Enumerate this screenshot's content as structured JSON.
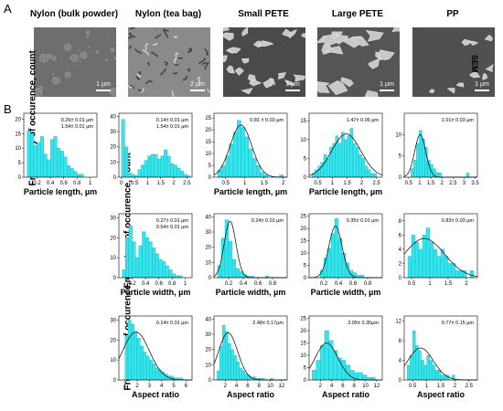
{
  "panel_labels": {
    "a": "A",
    "b": "B"
  },
  "sem": {
    "tag": "SEM",
    "columns": [
      {
        "title": "Nylon (bulk powder)",
        "scale": "1 µm",
        "bg": "#6e6e6e",
        "style": "nylon-bulk"
      },
      {
        "title": "Nylon (tea bag)",
        "scale": "2 µm",
        "bg": "#8a8a8a",
        "style": "nylon-tea"
      },
      {
        "title": "Small PETE",
        "scale": "1 µm",
        "bg": "#4a4a4a",
        "style": "flakes"
      },
      {
        "title": "Large PETE",
        "scale": "1 µm",
        "bg": "#555555",
        "style": "flakes-large"
      },
      {
        "title": "PP",
        "scale": "1 µm",
        "bg": "#505050",
        "style": "sparse"
      }
    ]
  },
  "row_labels": [
    "Frequency of occurence, count",
    "Frequency of occurence, count",
    "Frequency of occurence, count"
  ],
  "colors": {
    "bar": "#33e6ee",
    "bar_edge": "#1a9aa0",
    "fit": "#000000"
  },
  "chart_data": [
    {
      "type": "bar",
      "row": 0,
      "col": 0,
      "xlabel": "Particle length, µm",
      "annotation": [
        "0.26± 0.01 µm",
        "1.54± 0.01 µm"
      ],
      "xlim": [
        0,
        1.1
      ],
      "ylim": [
        0,
        22
      ],
      "xticks": [
        0.2,
        0.4,
        0.6,
        0.8,
        1.0
      ],
      "yticks": [
        0,
        5,
        10,
        15,
        20
      ],
      "bin_start": 0.05,
      "bin_width": 0.05,
      "values": [
        16,
        15,
        11,
        12,
        14,
        8,
        6,
        13,
        14,
        10,
        9,
        7,
        4,
        3,
        2,
        1,
        1
      ],
      "fit": null
    },
    {
      "type": "bar",
      "row": 0,
      "col": 1,
      "xlabel": "",
      "annotation": [
        "0.14± 0.01 µm",
        "1.54± 0.01 µm"
      ],
      "xlim": [
        -0.1,
        2.7
      ],
      "ylim": [
        0,
        42
      ],
      "xticks": [
        0.0,
        0.5,
        1.0,
        1.5,
        2.0,
        2.5
      ],
      "yticks": [
        0,
        10,
        20,
        30,
        40
      ],
      "bin_start": 0.0,
      "bin_width": 0.125,
      "values": [
        38,
        20,
        3,
        2,
        1,
        5,
        8,
        11,
        14,
        15,
        15,
        12,
        14,
        18,
        14,
        9,
        8,
        6,
        4,
        2,
        1
      ],
      "fit": null
    },
    {
      "type": "bar",
      "row": 0,
      "col": 2,
      "xlabel": "Particle length, µm",
      "annotation": [
        "0.81 ± 0.03 µm"
      ],
      "xlim": [
        0.2,
        2.1
      ],
      "ylim": [
        0,
        27
      ],
      "xticks": [
        0.5,
        1.0,
        1.5,
        2.0
      ],
      "yticks": [
        0,
        5,
        10,
        15,
        20,
        25
      ],
      "bin_start": 0.3,
      "bin_width": 0.1,
      "values": [
        3,
        5,
        9,
        14,
        19,
        24,
        21,
        17,
        12,
        8,
        5,
        2,
        1,
        0,
        0,
        0,
        1
      ],
      "fit": {
        "mu": 0.9,
        "sigma": 0.28,
        "amp": 22
      }
    },
    {
      "type": "bar",
      "row": 0,
      "col": 3,
      "xlabel": "Particle length, µm",
      "annotation": [
        "1.47± 0.06 µm"
      ],
      "xlim": [
        0.2,
        2.7
      ],
      "ylim": [
        0,
        17
      ],
      "xticks": [
        0.5,
        1.0,
        1.5,
        2.0,
        2.5
      ],
      "yticks": [
        0,
        5,
        10,
        15
      ],
      "bin_start": 0.3,
      "bin_width": 0.1,
      "values": [
        1,
        2,
        3,
        4,
        6,
        5,
        8,
        9,
        11,
        9,
        12,
        10,
        11,
        13,
        9,
        8,
        6,
        5,
        3,
        2,
        1,
        1
      ],
      "fit": {
        "mu": 1.47,
        "sigma": 0.5,
        "amp": 11.5
      }
    },
    {
      "type": "bar",
      "row": 0,
      "col": 4,
      "xlabel": "",
      "annotation": [
        "1.01± 0.03 µm"
      ],
      "xlim": [
        0.3,
        3.6
      ],
      "ylim": [
        0,
        15
      ],
      "xticks": [
        0.5,
        1.0,
        1.5,
        2.0,
        2.5,
        3.0,
        3.5
      ],
      "yticks": [
        0,
        5,
        10
      ],
      "bin_start": 0.6,
      "bin_width": 0.125,
      "values": [
        2,
        4,
        8,
        11,
        9,
        7,
        4,
        3,
        2,
        1,
        1,
        0,
        0,
        0,
        0,
        0,
        0,
        0,
        0,
        0,
        1
      ],
      "fit": {
        "mu": 1.02,
        "sigma": 0.25,
        "amp": 10
      }
    },
    {
      "type": "bar",
      "row": 1,
      "col": 1,
      "xlabel": "Particle width, µm",
      "annotation": [
        "0.27± 0.01 µm",
        "0.54± 0.01 µm"
      ],
      "xlim": [
        0.0,
        1.1
      ],
      "ylim": [
        0,
        32
      ],
      "xticks": [
        0.2,
        0.4,
        0.6,
        0.8,
        1.0
      ],
      "yticks": [
        0,
        10,
        20,
        30
      ],
      "bin_start": 0.05,
      "bin_width": 0.05,
      "values": [
        4,
        20,
        26,
        18,
        10,
        16,
        23,
        20,
        18,
        15,
        12,
        9,
        8,
        6,
        4,
        2,
        1,
        1
      ],
      "fit": null
    },
    {
      "type": "bar",
      "row": 1,
      "col": 2,
      "xlabel": "Particle width, µm",
      "annotation": [
        "0.24± 0.01 µm"
      ],
      "xlim": [
        0.0,
        1.0
      ],
      "ylim": [
        0,
        42
      ],
      "xticks": [
        0.2,
        0.4,
        0.6,
        0.8
      ],
      "yticks": [
        0,
        10,
        20,
        30,
        40
      ],
      "bin_start": 0.05,
      "bin_width": 0.05,
      "values": [
        8,
        26,
        38,
        24,
        12,
        6,
        4,
        2,
        1,
        1,
        0,
        0,
        0,
        1
      ],
      "fit": {
        "mu": 0.22,
        "sigma": 0.08,
        "amp": 37
      }
    },
    {
      "type": "bar",
      "row": 1,
      "col": 3,
      "xlabel": "Particle width, µm",
      "annotation": [
        "0.35± 0.01 µm"
      ],
      "xlim": [
        0.0,
        1.0
      ],
      "ylim": [
        0,
        26
      ],
      "xticks": [
        0.2,
        0.4,
        0.6,
        0.8
      ],
      "yticks": [
        0,
        5,
        10,
        15,
        20,
        25
      ],
      "bin_start": 0.15,
      "bin_width": 0.05,
      "values": [
        3,
        8,
        12,
        18,
        24,
        16,
        10,
        6,
        3,
        2,
        1,
        1
      ],
      "fit": {
        "mu": 0.36,
        "sigma": 0.09,
        "amp": 21
      }
    },
    {
      "type": "bar",
      "row": 1,
      "col": 4,
      "xlabel": "",
      "annotation": [
        "0.83± 0.03 µm"
      ],
      "xlim": [
        0.3,
        2.3
      ],
      "ylim": [
        0,
        9
      ],
      "xticks": [
        0.5,
        1.0,
        1.5,
        2.0
      ],
      "yticks": [
        0,
        2,
        4,
        6,
        8
      ],
      "bin_start": 0.4,
      "bin_width": 0.1,
      "values": [
        3,
        6,
        5,
        4,
        6,
        7,
        5,
        4,
        3,
        4,
        3,
        2,
        2,
        1,
        1,
        1,
        0,
        1
      ],
      "fit": {
        "mu": 0.85,
        "sigma": 0.55,
        "amp": 5.5
      }
    },
    {
      "type": "bar",
      "row": 2,
      "col": 1,
      "xlabel": "Aspect ratio",
      "annotation": [
        "0.14± 0.01 µm"
      ],
      "xlim": [
        0.5,
        6.5
      ],
      "ylim": [
        0,
        32
      ],
      "xticks": [
        1,
        2,
        3,
        4,
        5,
        6
      ],
      "yticks": [
        0,
        10,
        20,
        30
      ],
      "bin_start": 1.0,
      "bin_width": 0.25,
      "values": [
        22,
        30,
        28,
        24,
        21,
        17,
        14,
        12,
        10,
        8,
        6,
        5,
        4,
        3,
        2,
        2,
        1,
        1,
        1
      ],
      "fit": {
        "mu": 1.9,
        "sigma": 1.1,
        "amp": 24
      }
    },
    {
      "type": "bar",
      "row": 2,
      "col": 2,
      "xlabel": "Aspect ratio",
      "annotation": [
        "2.48± 0.17µm"
      ],
      "xlim": [
        0,
        13
      ],
      "ylim": [
        0,
        42
      ],
      "xticks": [
        2,
        4,
        6,
        8,
        10,
        12
      ],
      "yticks": [
        0,
        10,
        20,
        30,
        40
      ],
      "bin_start": 0.5,
      "bin_width": 0.5,
      "values": [
        6,
        22,
        36,
        32,
        24,
        20,
        16,
        12,
        8,
        6,
        4,
        3,
        2,
        2,
        1,
        1,
        1,
        0,
        0,
        1
      ],
      "fit": {
        "mu": 2.5,
        "sigma": 1.7,
        "amp": 31
      }
    },
    {
      "type": "bar",
      "row": 2,
      "col": 3,
      "xlabel": "Aspect ratio",
      "annotation": [
        "3.05± 0.35µm"
      ],
      "xlim": [
        0,
        13
      ],
      "ylim": [
        0,
        26
      ],
      "xticks": [
        2,
        4,
        6,
        8,
        10,
        12
      ],
      "yticks": [
        0,
        5,
        10,
        15,
        20,
        25
      ],
      "bin_start": 0.5,
      "bin_width": 0.75,
      "values": [
        4,
        8,
        14,
        20,
        16,
        12,
        9,
        8,
        6,
        4,
        3,
        3,
        2,
        1,
        1
      ],
      "fit": {
        "mu": 3.1,
        "sigma": 2.0,
        "amp": 15
      }
    },
    {
      "type": "bar",
      "row": 2,
      "col": 4,
      "xlabel": "Aspect ratio",
      "annotation": [
        "0.77± 0.15 µm"
      ],
      "xlim": [
        0.2,
        2.8
      ],
      "ylim": [
        0,
        13
      ],
      "xticks": [
        0.5,
        1.0,
        1.5,
        2.0,
        2.5
      ],
      "yticks": [
        0,
        4,
        8,
        12
      ],
      "bin_start": 0.3,
      "bin_width": 0.1,
      "values": [
        3,
        5,
        10,
        7,
        6,
        4,
        3,
        5,
        4,
        3,
        2,
        2,
        1,
        1,
        1,
        0,
        1
      ],
      "fit": {
        "mu": 0.78,
        "sigma": 0.45,
        "amp": 6.5
      }
    }
  ]
}
